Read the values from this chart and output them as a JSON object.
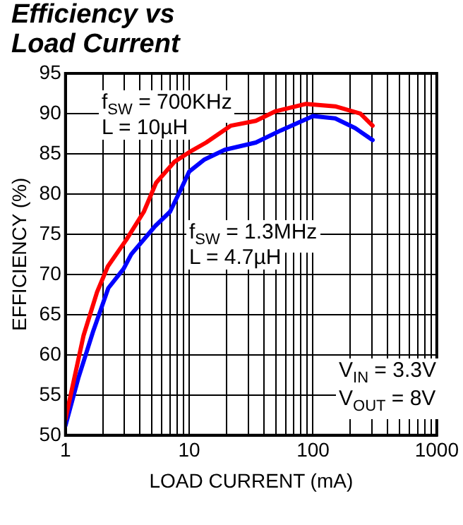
{
  "chart_data": {
    "type": "line",
    "title": "Efficiency vs Load Current",
    "xlabel": "LOAD CURRENT (mA)",
    "ylabel": "EFFICIENCY (%)",
    "log": "x",
    "grid": true,
    "legend": false,
    "marker": "none",
    "line_style": "solid",
    "xlim": [
      1,
      1000
    ],
    "ylim": [
      50,
      95
    ],
    "xticks": [
      1,
      {
        "value": 2,
        "label": null
      },
      {
        "value": 3,
        "label": null
      },
      {
        "value": 4,
        "label": null
      },
      {
        "value": 5,
        "label": null
      },
      {
        "value": 6,
        "label": null
      },
      {
        "value": 7,
        "label": null
      },
      {
        "value": 8,
        "label": null
      },
      {
        "value": 9,
        "label": null
      },
      10,
      {
        "value": 20,
        "label": null
      },
      {
        "value": 30,
        "label": null
      },
      {
        "value": 40,
        "label": null
      },
      {
        "value": 50,
        "label": null
      },
      {
        "value": 60,
        "label": null
      },
      {
        "value": 70,
        "label": null
      },
      {
        "value": 80,
        "label": null
      },
      {
        "value": 90,
        "label": null
      },
      100,
      {
        "value": 200,
        "label": null
      },
      {
        "value": 300,
        "label": null
      },
      {
        "value": 400,
        "label": null
      },
      {
        "value": 500,
        "label": null
      },
      {
        "value": 600,
        "label": null
      },
      {
        "value": 700,
        "label": null
      },
      {
        "value": 800,
        "label": null
      },
      {
        "value": 900,
        "label": null
      },
      1000
    ],
    "yticks": [
      50,
      55,
      60,
      65,
      70,
      75,
      80,
      85,
      90,
      95
    ],
    "series": [
      {
        "color": "#ff0000",
        "x": [
          1,
          1.4,
          1.8,
          2.2,
          3.1,
          4.3,
          5.4,
          7.6,
          10,
          13.7,
          21.7,
          34.5,
          50,
          87,
          151,
          241,
          303
        ],
        "values": [
          52,
          62.4,
          67.8,
          71,
          74.3,
          77.8,
          81.4,
          84,
          85.2,
          86.4,
          88.5,
          89.1,
          90.3,
          91.2,
          90.9,
          90,
          88.5
        ]
      },
      {
        "color": "#0000ff",
        "x": [
          1,
          1.27,
          1.68,
          2.22,
          2.95,
          3.4,
          5.3,
          7,
          8.7,
          10,
          13.3,
          19.4,
          34.5,
          54.8,
          100,
          151,
          219,
          303
        ],
        "values": [
          51.2,
          57.1,
          63,
          68.3,
          70.7,
          72.5,
          76,
          77.8,
          80.8,
          82.8,
          84.3,
          85.5,
          86.4,
          87.9,
          89.7,
          89.4,
          88.2,
          86.7
        ]
      }
    ],
    "annotations": [
      "f$_{SW}$ = 700KHz",
      "L = 10µH",
      "f$_{SW}$ = 1.3MHz",
      "L = 4.7µH",
      "V$_{IN}$ = 3.3V",
      "V$_{OUT}$ = 8V"
    ]
  }
}
